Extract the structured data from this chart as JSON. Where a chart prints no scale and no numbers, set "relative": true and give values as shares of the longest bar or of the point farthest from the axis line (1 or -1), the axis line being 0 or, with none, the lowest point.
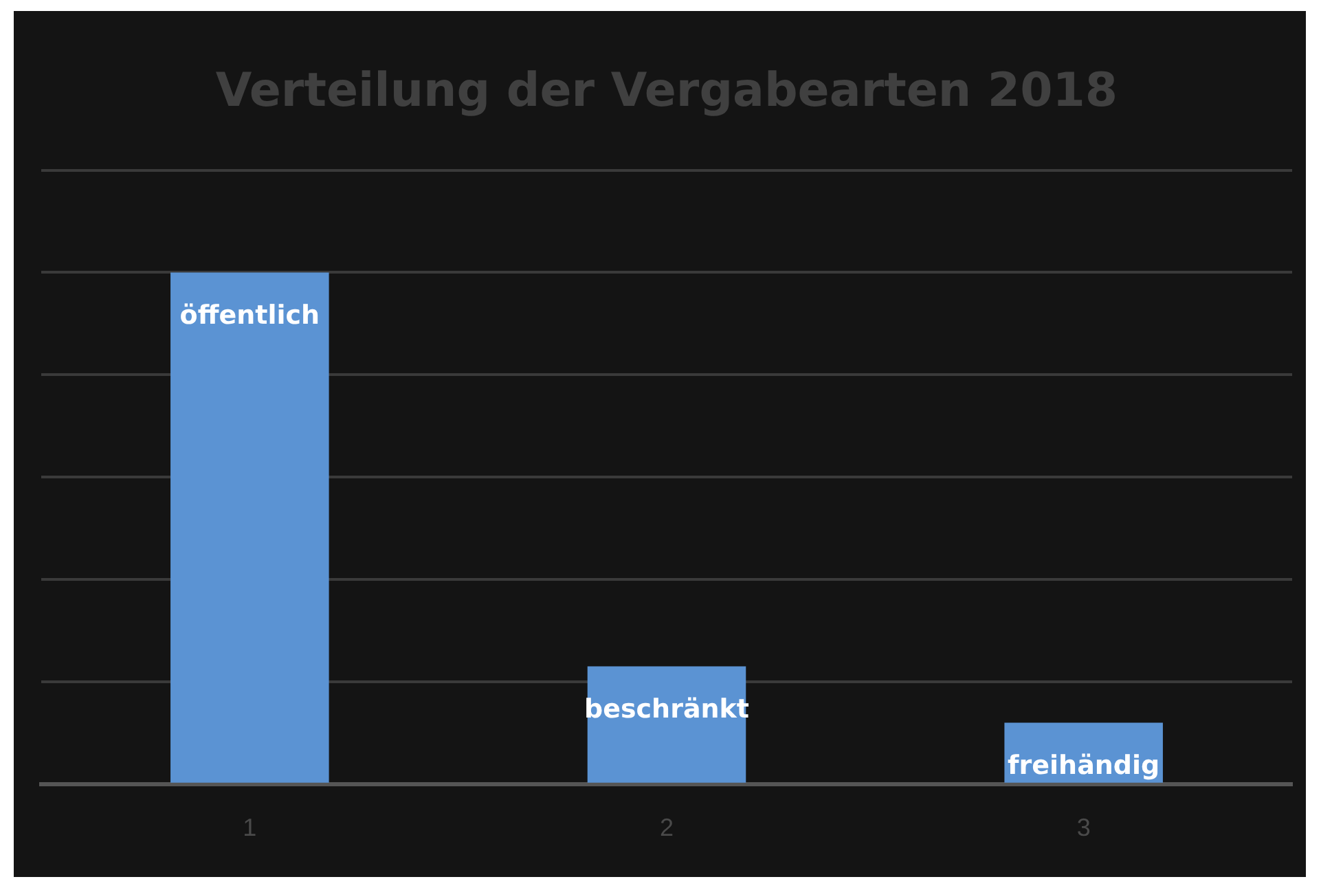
{
  "chart_data": {
    "type": "bar",
    "title": "Verteilung der Vergabearten 2018",
    "categories": [
      "1",
      "2",
      "3"
    ],
    "values": [
      1,
      0.23,
      0.12
    ],
    "color": "#5b93d3",
    "relative": true,
    "grid": "y",
    "annotations": [
      {
        "text": "öffentlich",
        "x": "1",
        "y": 1
      },
      {
        "text": "beschränkt",
        "x": "2",
        "y": 0.23
      },
      {
        "text": "freihändig",
        "x": "3",
        "y": 0.12
      }
    ]
  }
}
